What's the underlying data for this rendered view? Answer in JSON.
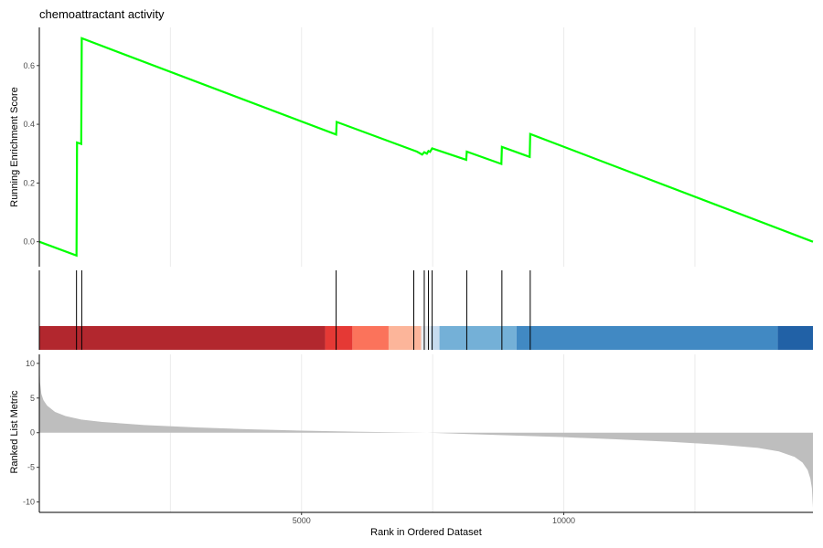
{
  "chart_data": {
    "type": "line",
    "title": "chemoattractant activity",
    "xlabel": "Rank in Ordered Dataset",
    "xlim": [
      1,
      14750
    ],
    "x_ticks": [
      5000,
      10000
    ],
    "x_tick_labels": [
      "5000",
      "10000"
    ],
    "x_grid": [
      2500,
      5000,
      7500,
      10000,
      12500
    ],
    "running_score": {
      "ylabel": "Running Enrichment Score",
      "ylim": [
        -0.085,
        0.73
      ],
      "y_ticks": [
        0.0,
        0.2,
        0.4,
        0.6
      ],
      "y_tick_labels": [
        "0.0",
        "0.2",
        "0.4",
        "0.6"
      ],
      "color": "#00ff00",
      "points": [
        [
          1,
          0.0
        ],
        [
          710,
          -0.047
        ],
        [
          720,
          0.338
        ],
        [
          800,
          0.333
        ],
        [
          810,
          0.693
        ],
        [
          5660,
          0.365
        ],
        [
          5670,
          0.408
        ],
        [
          7200,
          0.307
        ],
        [
          7300,
          0.297
        ],
        [
          7340,
          0.305
        ],
        [
          7390,
          0.3
        ],
        [
          7420,
          0.309
        ],
        [
          7450,
          0.306
        ],
        [
          7490,
          0.318
        ],
        [
          8140,
          0.279
        ],
        [
          8150,
          0.307
        ],
        [
          8810,
          0.265
        ],
        [
          8820,
          0.323
        ],
        [
          9350,
          0.289
        ],
        [
          9360,
          0.367
        ],
        [
          14750,
          0.0
        ]
      ]
    },
    "hits": [
      710,
      810,
      5660,
      7140,
      7340,
      7420,
      7490,
      8150,
      8820,
      9360
    ],
    "rank_color_bands": [
      {
        "from": 1,
        "to": 5450,
        "color": "#b2272e"
      },
      {
        "from": 5450,
        "to": 5970,
        "color": "#e53935"
      },
      {
        "from": 5970,
        "to": 6660,
        "color": "#fb735b"
      },
      {
        "from": 6660,
        "to": 7280,
        "color": "#fcb59a"
      },
      {
        "from": 7280,
        "to": 7460,
        "color": "#e9ecf1"
      },
      {
        "from": 7460,
        "to": 7630,
        "color": "#c6dbef"
      },
      {
        "from": 7630,
        "to": 9100,
        "color": "#74b0d7"
      },
      {
        "from": 9100,
        "to": 14080,
        "color": "#4189c3"
      },
      {
        "from": 14080,
        "to": 14750,
        "color": "#2161a6"
      }
    ],
    "ranked_metric": {
      "ylabel": "Ranked List Metric",
      "ylim": [
        -11.5,
        11.3
      ],
      "y_ticks": [
        10,
        5,
        0,
        -5,
        -10
      ],
      "y_tick_labels": [
        "10",
        "5",
        "0",
        "-5",
        "-10"
      ],
      "fill": "#bebebe",
      "profile": [
        [
          1,
          10.5
        ],
        [
          15,
          7.2
        ],
        [
          40,
          5.6
        ],
        [
          80,
          4.7
        ],
        [
          150,
          3.9
        ],
        [
          300,
          3.0
        ],
        [
          500,
          2.4
        ],
        [
          800,
          1.9
        ],
        [
          1200,
          1.55
        ],
        [
          2000,
          1.1
        ],
        [
          3000,
          0.75
        ],
        [
          4000,
          0.5
        ],
        [
          5000,
          0.3
        ],
        [
          6000,
          0.15
        ],
        [
          7000,
          0.04
        ],
        [
          7400,
          0.0
        ],
        [
          8000,
          -0.15
        ],
        [
          9000,
          -0.4
        ],
        [
          10000,
          -0.65
        ],
        [
          11000,
          -0.95
        ],
        [
          12000,
          -1.3
        ],
        [
          13000,
          -1.75
        ],
        [
          13700,
          -2.2
        ],
        [
          14100,
          -2.7
        ],
        [
          14400,
          -3.5
        ],
        [
          14550,
          -4.3
        ],
        [
          14650,
          -5.4
        ],
        [
          14700,
          -6.6
        ],
        [
          14730,
          -8.0
        ],
        [
          14750,
          -10.8
        ]
      ]
    }
  }
}
